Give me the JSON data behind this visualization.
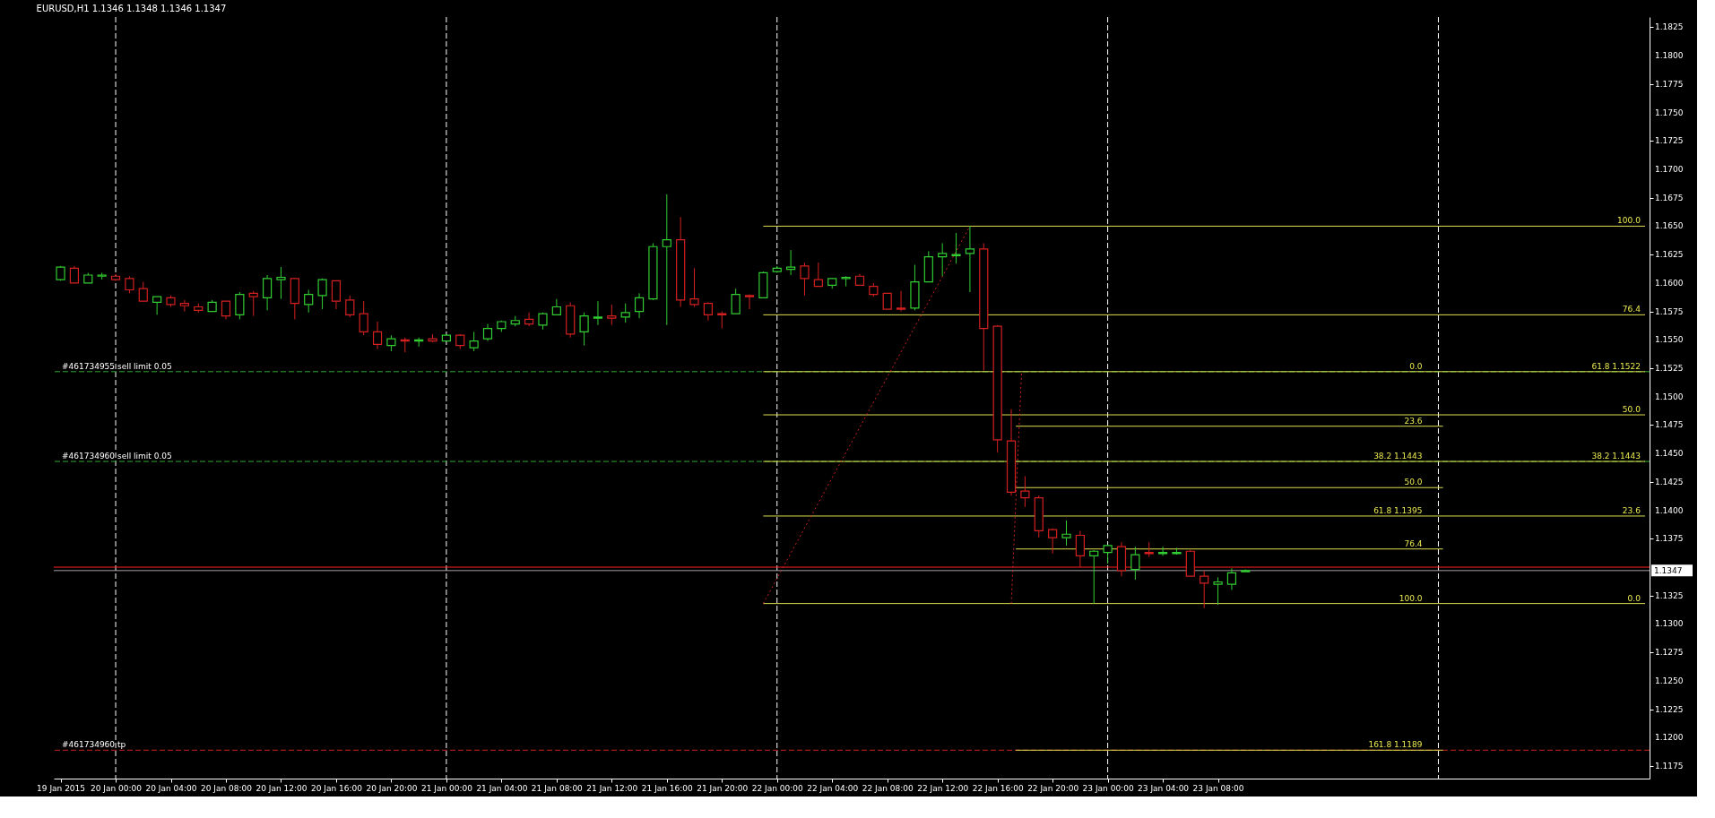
{
  "chart_data": {
    "type": "candlestick",
    "title": "EURUSD,H1  1.1346 1.1348 1.1346 1.1347",
    "x": [
      "2015-01-19T20:00",
      "2015-01-19T21:00",
      "2015-01-19T22:00",
      "2015-01-19T23:00",
      "2015-01-20T00:00",
      "2015-01-20T01:00",
      "2015-01-20T02:00",
      "2015-01-20T03:00",
      "2015-01-20T04:00",
      "2015-01-20T05:00",
      "2015-01-20T06:00",
      "2015-01-20T07:00",
      "2015-01-20T08:00",
      "2015-01-20T09:00",
      "2015-01-20T10:00",
      "2015-01-20T11:00",
      "2015-01-20T12:00",
      "2015-01-20T13:00",
      "2015-01-20T14:00",
      "2015-01-20T15:00",
      "2015-01-20T16:00",
      "2015-01-20T17:00",
      "2015-01-20T18:00",
      "2015-01-20T19:00",
      "2015-01-20T20:00",
      "2015-01-20T21:00",
      "2015-01-20T22:00",
      "2015-01-20T23:00",
      "2015-01-21T00:00",
      "2015-01-21T01:00",
      "2015-01-21T02:00",
      "2015-01-21T03:00",
      "2015-01-21T04:00",
      "2015-01-21T05:00",
      "2015-01-21T06:00",
      "2015-01-21T07:00",
      "2015-01-21T08:00",
      "2015-01-21T09:00",
      "2015-01-21T10:00",
      "2015-01-21T11:00",
      "2015-01-21T12:00",
      "2015-01-21T13:00",
      "2015-01-21T14:00",
      "2015-01-21T15:00",
      "2015-01-21T16:00",
      "2015-01-21T17:00",
      "2015-01-21T18:00",
      "2015-01-21T19:00",
      "2015-01-21T20:00",
      "2015-01-21T21:00",
      "2015-01-21T22:00",
      "2015-01-21T23:00",
      "2015-01-22T00:00",
      "2015-01-22T01:00",
      "2015-01-22T02:00",
      "2015-01-22T03:00",
      "2015-01-22T04:00",
      "2015-01-22T05:00",
      "2015-01-22T06:00",
      "2015-01-22T07:00",
      "2015-01-22T08:00",
      "2015-01-22T09:00",
      "2015-01-22T10:00",
      "2015-01-22T11:00",
      "2015-01-22T12:00",
      "2015-01-22T13:00",
      "2015-01-22T14:00",
      "2015-01-22T15:00",
      "2015-01-22T16:00",
      "2015-01-22T17:00",
      "2015-01-22T18:00",
      "2015-01-22T19:00",
      "2015-01-22T20:00",
      "2015-01-22T21:00",
      "2015-01-22T22:00",
      "2015-01-22T23:00",
      "2015-01-23T00:00",
      "2015-01-23T01:00",
      "2015-01-23T02:00",
      "2015-01-23T03:00",
      "2015-01-23T04:00",
      "2015-01-23T05:00",
      "2015-01-23T06:00",
      "2015-01-23T07:00",
      "2015-01-23T08:00",
      "2015-01-23T09:00",
      "2015-01-23T10:00"
    ],
    "ohlc": [
      [
        1.1603,
        1.1615,
        1.1602,
        1.1614
      ],
      [
        1.1613,
        1.1615,
        1.16,
        1.16
      ],
      [
        1.16,
        1.1609,
        1.16,
        1.1607
      ],
      [
        1.1606,
        1.1609,
        1.1603,
        1.1607
      ],
      [
        1.1606,
        1.1608,
        1.1602,
        1.1603
      ],
      [
        1.1604,
        1.1606,
        1.1591,
        1.1594
      ],
      [
        1.1595,
        1.1601,
        1.1584,
        1.1584
      ],
      [
        1.1583,
        1.1588,
        1.1572,
        1.1588
      ],
      [
        1.1587,
        1.1589,
        1.1579,
        1.1581
      ],
      [
        1.1582,
        1.1585,
        1.1575,
        1.158
      ],
      [
        1.1579,
        1.1582,
        1.1574,
        1.1576
      ],
      [
        1.1575,
        1.1585,
        1.1575,
        1.1583
      ],
      [
        1.1584,
        1.1584,
        1.1568,
        1.1571
      ],
      [
        1.1572,
        1.1592,
        1.1568,
        1.159
      ],
      [
        1.1591,
        1.1593,
        1.1571,
        1.1588
      ],
      [
        1.1587,
        1.1607,
        1.1576,
        1.1604
      ],
      [
        1.1603,
        1.1614,
        1.1586,
        1.1605
      ],
      [
        1.1604,
        1.1604,
        1.1568,
        1.1582
      ],
      [
        1.1581,
        1.1594,
        1.1574,
        1.159
      ],
      [
        1.1589,
        1.1604,
        1.1577,
        1.1603
      ],
      [
        1.1602,
        1.1602,
        1.1577,
        1.1584
      ],
      [
        1.1585,
        1.1589,
        1.157,
        1.1572
      ],
      [
        1.1573,
        1.1584,
        1.1554,
        1.1557
      ],
      [
        1.1557,
        1.1566,
        1.1542,
        1.1546
      ],
      [
        1.1545,
        1.1554,
        1.154,
        1.1551
      ],
      [
        1.155,
        1.1552,
        1.1539,
        1.1549
      ],
      [
        1.1549,
        1.1552,
        1.1544,
        1.155
      ],
      [
        1.1551,
        1.1555,
        1.1548,
        1.1549
      ],
      [
        1.1549,
        1.1555,
        1.1549,
        1.1554
      ],
      [
        1.1554,
        1.1555,
        1.1542,
        1.1545
      ],
      [
        1.1543,
        1.1557,
        1.154,
        1.1549
      ],
      [
        1.1551,
        1.1564,
        1.1549,
        1.156
      ],
      [
        1.156,
        1.1567,
        1.1557,
        1.1566
      ],
      [
        1.1564,
        1.1571,
        1.1562,
        1.1567
      ],
      [
        1.1568,
        1.1574,
        1.1562,
        1.1564
      ],
      [
        1.1563,
        1.1574,
        1.1559,
        1.1573
      ],
      [
        1.1572,
        1.1586,
        1.1572,
        1.1579
      ],
      [
        1.158,
        1.1583,
        1.1552,
        1.1555
      ],
      [
        1.1557,
        1.1574,
        1.1545,
        1.1571
      ],
      [
        1.1569,
        1.1584,
        1.1563,
        1.157
      ],
      [
        1.1571,
        1.1581,
        1.1563,
        1.1569
      ],
      [
        1.157,
        1.1582,
        1.1565,
        1.1574
      ],
      [
        1.1575,
        1.1591,
        1.1569,
        1.1587
      ],
      [
        1.1586,
        1.1635,
        1.1585,
        1.1632
      ],
      [
        1.1632,
        1.1678,
        1.1563,
        1.1638
      ],
      [
        1.1638,
        1.1658,
        1.1579,
        1.1585
      ],
      [
        1.1586,
        1.1613,
        1.1579,
        1.1581
      ],
      [
        1.1582,
        1.1583,
        1.1567,
        1.1572
      ],
      [
        1.1573,
        1.1575,
        1.156,
        1.1572
      ],
      [
        1.1573,
        1.1595,
        1.1573,
        1.159
      ],
      [
        1.1589,
        1.159,
        1.1577,
        1.1588
      ],
      [
        1.1587,
        1.161,
        1.1587,
        1.1609
      ],
      [
        1.161,
        1.1615,
        1.1609,
        1.1613
      ],
      [
        1.1612,
        1.1629,
        1.1607,
        1.1614
      ],
      [
        1.1615,
        1.1618,
        1.1589,
        1.1604
      ],
      [
        1.1603,
        1.1618,
        1.1597,
        1.1597
      ],
      [
        1.1598,
        1.1604,
        1.1595,
        1.1604
      ],
      [
        1.1604,
        1.1606,
        1.1597,
        1.1605
      ],
      [
        1.1606,
        1.1608,
        1.1598,
        1.1598
      ],
      [
        1.1597,
        1.16,
        1.1588,
        1.159
      ],
      [
        1.1591,
        1.1591,
        1.1577,
        1.1577
      ],
      [
        1.1578,
        1.1593,
        1.1575,
        1.1577
      ],
      [
        1.1578,
        1.1616,
        1.1576,
        1.1601
      ],
      [
        1.1601,
        1.1628,
        1.1601,
        1.1623
      ],
      [
        1.1623,
        1.1635,
        1.1606,
        1.1626
      ],
      [
        1.1624,
        1.1644,
        1.1617,
        1.1625
      ],
      [
        1.1626,
        1.165,
        1.1592,
        1.163
      ],
      [
        1.163,
        1.1635,
        1.1523,
        1.156
      ],
      [
        1.1562,
        1.1563,
        1.1451,
        1.1462
      ],
      [
        1.1461,
        1.1489,
        1.1413,
        1.1416
      ],
      [
        1.1417,
        1.143,
        1.1403,
        1.1411
      ],
      [
        1.1411,
        1.1413,
        1.1376,
        1.1382
      ],
      [
        1.1383,
        1.1384,
        1.1362,
        1.1376
      ],
      [
        1.1376,
        1.1391,
        1.1369,
        1.1379
      ],
      [
        1.1378,
        1.1382,
        1.135,
        1.136
      ],
      [
        1.136,
        1.1365,
        1.1318,
        1.1364
      ],
      [
        1.1363,
        1.137,
        1.1353,
        1.1369
      ],
      [
        1.1368,
        1.1372,
        1.1342,
        1.1347
      ],
      [
        1.1348,
        1.1368,
        1.1339,
        1.1361
      ],
      [
        1.1363,
        1.1372,
        1.1359,
        1.1362
      ],
      [
        1.1362,
        1.1368,
        1.136,
        1.1363
      ],
      [
        1.1362,
        1.1367,
        1.1361,
        1.1363
      ],
      [
        1.1364,
        1.1365,
        1.1342,
        1.1342
      ],
      [
        1.1342,
        1.1347,
        1.1314,
        1.1336
      ],
      [
        1.1335,
        1.1341,
        1.1317,
        1.1337
      ],
      [
        1.1335,
        1.1349,
        1.133,
        1.1345
      ],
      [
        1.1346,
        1.1348,
        1.1346,
        1.1347
      ]
    ],
    "colors": [
      "#32cd32",
      "#d42020",
      "#32cd32",
      "#32cd32",
      "#d42020",
      "#d42020",
      "#d42020",
      "#32cd32",
      "#d42020",
      "#d42020",
      "#d42020",
      "#32cd32",
      "#d42020",
      "#32cd32",
      "#d42020",
      "#32cd32",
      "#32cd32",
      "#d42020",
      "#32cd32",
      "#32cd32",
      "#d42020",
      "#d42020",
      "#d42020",
      "#d42020",
      "#32cd32",
      "#d42020",
      "#32cd32",
      "#d42020",
      "#32cd32",
      "#d42020",
      "#32cd32",
      "#32cd32",
      "#32cd32",
      "#32cd32",
      "#d42020",
      "#32cd32",
      "#32cd32",
      "#d42020",
      "#32cd32",
      "#32cd32",
      "#d42020",
      "#32cd32",
      "#32cd32",
      "#32cd32",
      "#32cd32",
      "#d42020",
      "#d42020",
      "#d42020",
      "#d42020",
      "#32cd32",
      "#d42020",
      "#32cd32",
      "#32cd32",
      "#32cd32",
      "#d42020",
      "#d42020",
      "#32cd32",
      "#32cd32",
      "#d42020",
      "#d42020",
      "#d42020",
      "#d42020",
      "#32cd32",
      "#32cd32",
      "#32cd32",
      "#32cd32",
      "#32cd32",
      "#d42020",
      "#d42020",
      "#d42020",
      "#d42020",
      "#d42020",
      "#d42020",
      "#32cd32",
      "#d42020",
      "#32cd32",
      "#32cd32",
      "#d42020",
      "#32cd32",
      "#d42020",
      "#32cd32",
      "#32cd32",
      "#d42020",
      "#d42020",
      "#32cd32",
      "#32cd32",
      "#32cd32"
    ],
    "series": [
      {
        "type": "line",
        "x": [
          "2015-01-21T23:00",
          "2015-01-24T15:00"
        ],
        "values": [
          1.165,
          1.165
        ],
        "color": "#dede50"
      },
      {
        "type": "line",
        "x": [
          "2015-01-21T23:00",
          "2015-01-24T15:00"
        ],
        "values": [
          1.1572,
          1.1572
        ],
        "color": "#dede50"
      },
      {
        "type": "line",
        "x": [
          "2015-01-21T23:00",
          "2015-01-24T15:00"
        ],
        "values": [
          1.1522,
          1.1522
        ],
        "color": "#dede50"
      },
      {
        "type": "line",
        "x": [
          "2015-01-21T23:00",
          "2015-01-24T15:00"
        ],
        "values": [
          1.1484,
          1.1484
        ],
        "color": "#dede50"
      },
      {
        "type": "line",
        "x": [
          "2015-01-21T23:00",
          "2015-01-24T15:00"
        ],
        "values": [
          1.1443,
          1.1443
        ],
        "color": "#dede50"
      },
      {
        "type": "line",
        "x": [
          "2015-01-21T23:00",
          "2015-01-24T15:00"
        ],
        "values": [
          1.1395,
          1.1395
        ],
        "color": "#dede50"
      },
      {
        "type": "line",
        "x": [
          "2015-01-21T23:00",
          "2015-01-24T15:00"
        ],
        "values": [
          1.1318,
          1.1318
        ],
        "color": "#dede50"
      },
      {
        "type": "line",
        "x": [
          "2015-01-22T17:20",
          "2015-01-24T00:20"
        ],
        "values": [
          1.1474,
          1.1474
        ],
        "color": "#dede50"
      },
      {
        "type": "line",
        "x": [
          "2015-01-22T17:20",
          "2015-01-24T00:20"
        ],
        "values": [
          1.142,
          1.142
        ],
        "color": "#dede50"
      },
      {
        "type": "line",
        "x": [
          "2015-01-22T17:20",
          "2015-01-24T00:20"
        ],
        "values": [
          1.1366,
          1.1366
        ],
        "color": "#dede50"
      },
      {
        "type": "line",
        "x": [
          "2015-01-22T17:20",
          "2015-01-24T00:20"
        ],
        "values": [
          1.1189,
          1.1189
        ],
        "color": "#dede50"
      },
      {
        "type": "line",
        "x": [
          "2015-01-21T23:00",
          "2015-01-22T14:00"
        ],
        "values": [
          1.1318,
          1.165
        ],
        "color": "#cc2222",
        "line_style": "dotted"
      },
      {
        "type": "line",
        "x": [
          "2015-01-22T17:00",
          "2015-01-22T17:45"
        ],
        "values": [
          1.1318,
          1.1522
        ],
        "color": "#cc2222",
        "line_style": "dotted"
      }
    ],
    "annotations": [
      {
        "text": "100.0",
        "x": "2015-01-24T14:40",
        "y": 1.165
      },
      {
        "text": "76.4",
        "x": "2015-01-24T14:40",
        "y": 1.1572
      },
      {
        "text": "61.8  1.1522",
        "x": "2015-01-24T14:40",
        "y": 1.1522
      },
      {
        "text": "50.0",
        "x": "2015-01-24T14:40",
        "y": 1.1484
      },
      {
        "text": "38.2  1.1443",
        "x": "2015-01-24T14:40",
        "y": 1.1443
      },
      {
        "text": "23.6",
        "x": "2015-01-24T14:40",
        "y": 1.1395
      },
      {
        "text": "0.0",
        "x": "2015-01-24T14:40",
        "y": 1.1318
      },
      {
        "text": "0.0",
        "x": "2015-01-23T22:50",
        "y": 1.1522
      },
      {
        "text": "23.6",
        "x": "2015-01-23T22:50",
        "y": 1.1474
      },
      {
        "text": "38.2  1.1443",
        "x": "2015-01-23T22:50",
        "y": 1.1443
      },
      {
        "text": "50.0",
        "x": "2015-01-23T22:50",
        "y": 1.142
      },
      {
        "text": "61.8  1.1395",
        "x": "2015-01-23T22:50",
        "y": 1.1395
      },
      {
        "text": "76.4",
        "x": "2015-01-23T22:50",
        "y": 1.1366
      },
      {
        "text": "100.0",
        "x": "2015-01-23T22:50",
        "y": 1.1318
      },
      {
        "text": "161.8  1.1189",
        "x": "2015-01-23T22:50",
        "y": 1.1189
      }
    ],
    "ref_lines": [
      {
        "axis": "x",
        "value": "2015-01-20T00:00",
        "color": "#ffffff",
        "line_style": "dashed"
      },
      {
        "axis": "x",
        "value": "2015-01-21T00:00",
        "color": "#ffffff",
        "line_style": "dashed"
      },
      {
        "axis": "x",
        "value": "2015-01-22T00:00",
        "color": "#ffffff",
        "line_style": "dashed"
      },
      {
        "axis": "x",
        "value": "2015-01-23T00:00",
        "color": "#ffffff",
        "line_style": "dashed"
      },
      {
        "axis": "x",
        "value": "2015-01-24T00:00",
        "color": "#ffffff",
        "line_style": "dashed"
      },
      {
        "axis": "y",
        "value": 1.1522,
        "label": "#461734955 sell limit 0.05",
        "color": "#2fa82f",
        "line_style": "dashed"
      },
      {
        "axis": "y",
        "value": 1.1443,
        "label": "#461734960 sell limit 0.05",
        "color": "#2fa82f",
        "line_style": "dashed"
      },
      {
        "axis": "y",
        "value": 1.1189,
        "label": "#461734960 tp",
        "color": "#cc2222",
        "line_style": "dashed"
      },
      {
        "axis": "y",
        "value": 1.135,
        "color": "#ff2020",
        "line_style": "solid"
      },
      {
        "axis": "y",
        "value": 1.1347,
        "label": "1.1347",
        "color": "#a0a0a0",
        "line_style": "solid"
      }
    ],
    "xlim": [
      "2015-01-19T19:50",
      "2015-01-24T15:00"
    ],
    "xticks": [
      {
        "value": "2015-01-19T20:00",
        "label": "19 Jan 2015"
      },
      {
        "value": "2015-01-20T00:00",
        "label": "20 Jan 00:00"
      },
      {
        "value": "2015-01-20T04:00",
        "label": "20 Jan 04:00"
      },
      {
        "value": "2015-01-20T08:00",
        "label": "20 Jan 08:00"
      },
      {
        "value": "2015-01-20T12:00",
        "label": "20 Jan 12:00"
      },
      {
        "value": "2015-01-20T16:00",
        "label": "20 Jan 16:00"
      },
      {
        "value": "2015-01-20T20:00",
        "label": "20 Jan 20:00"
      },
      {
        "value": "2015-01-21T00:00",
        "label": "21 Jan 00:00"
      },
      {
        "value": "2015-01-21T04:00",
        "label": "21 Jan 04:00"
      },
      {
        "value": "2015-01-21T08:00",
        "label": "21 Jan 08:00"
      },
      {
        "value": "2015-01-21T12:00",
        "label": "21 Jan 12:00"
      },
      {
        "value": "2015-01-21T16:00",
        "label": "21 Jan 16:00"
      },
      {
        "value": "2015-01-21T20:00",
        "label": "21 Jan 20:00"
      },
      {
        "value": "2015-01-22T00:00",
        "label": "22 Jan 00:00"
      },
      {
        "value": "2015-01-22T04:00",
        "label": "22 Jan 04:00"
      },
      {
        "value": "2015-01-22T08:00",
        "label": "22 Jan 08:00"
      },
      {
        "value": "2015-01-22T12:00",
        "label": "22 Jan 12:00"
      },
      {
        "value": "2015-01-22T16:00",
        "label": "22 Jan 16:00"
      },
      {
        "value": "2015-01-22T20:00",
        "label": "22 Jan 20:00"
      },
      {
        "value": "2015-01-23T00:00",
        "label": "23 Jan 00:00"
      },
      {
        "value": "2015-01-23T04:00",
        "label": "23 Jan 04:00"
      },
      {
        "value": "2015-01-23T08:00",
        "label": "23 Jan 08:00"
      }
    ],
    "ylim": [
      1.1164,
      1.1834
    ],
    "yticks": [
      {
        "value": 1.1175,
        "label": "1.1175"
      },
      {
        "value": 1.12,
        "label": "1.1200"
      },
      {
        "value": 1.1225,
        "label": "1.1225"
      },
      {
        "value": 1.125,
        "label": "1.1250"
      },
      {
        "value": 1.1275,
        "label": "1.1275"
      },
      {
        "value": 1.13,
        "label": "1.1300"
      },
      {
        "value": 1.1325,
        "label": "1.1325"
      },
      {
        "value": 1.135,
        "label": null
      },
      {
        "value": 1.1375,
        "label": "1.1375"
      },
      {
        "value": 1.14,
        "label": "1.1400"
      },
      {
        "value": 1.1425,
        "label": "1.1425"
      },
      {
        "value": 1.145,
        "label": "1.1450"
      },
      {
        "value": 1.1475,
        "label": "1.1475"
      },
      {
        "value": 1.15,
        "label": "1.1500"
      },
      {
        "value": 1.1525,
        "label": "1.1525"
      },
      {
        "value": 1.155,
        "label": "1.1550"
      },
      {
        "value": 1.1575,
        "label": "1.1575"
      },
      {
        "value": 1.16,
        "label": "1.1600"
      },
      {
        "value": 1.1625,
        "label": "1.1625"
      },
      {
        "value": 1.165,
        "label": "1.1650"
      },
      {
        "value": 1.1675,
        "label": "1.1675"
      },
      {
        "value": 1.17,
        "label": "1.1700"
      },
      {
        "value": 1.1725,
        "label": "1.1725"
      },
      {
        "value": 1.175,
        "label": "1.1750"
      },
      {
        "value": 1.1775,
        "label": "1.1775"
      },
      {
        "value": 1.18,
        "label": "1.1800"
      },
      {
        "value": 1.1825,
        "label": "1.1825"
      }
    ]
  }
}
